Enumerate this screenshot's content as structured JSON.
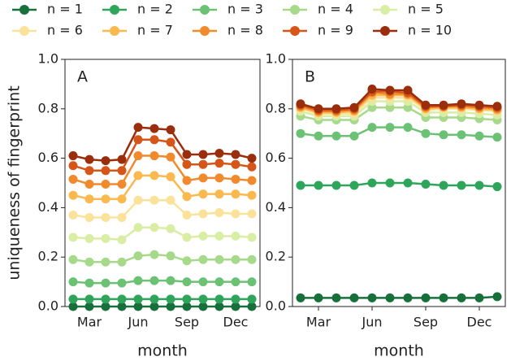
{
  "chart_data": [
    {
      "type": "line",
      "title": "A",
      "y_label": "uniqueness of fingerprint",
      "x_label": "month",
      "categories": [
        null,
        "Mar",
        null,
        null,
        "Jun",
        null,
        null,
        "Sep",
        null,
        null,
        "Dec",
        null
      ],
      "ylim": [
        0,
        1
      ],
      "yticks": [
        {
          "value": 0,
          "label": "0.0"
        },
        0.2,
        0.4,
        0.6,
        0.8,
        {
          "value": 1,
          "label": "1.0"
        }
      ],
      "series": [
        {
          "name": "n = 1",
          "color": "#17703a",
          "values": [
            0,
            0,
            0,
            0,
            0,
            0,
            0,
            0,
            0,
            0,
            0,
            0
          ]
        },
        {
          "name": "n = 2",
          "color": "#2ea55a",
          "values": [
            0.03,
            0.03,
            0.03,
            0.03,
            0.03,
            0.03,
            0.03,
            0.03,
            0.03,
            0.03,
            0.03,
            0.03
          ]
        },
        {
          "name": "n = 3",
          "color": "#6cc274",
          "values": [
            0.1,
            0.095,
            0.095,
            0.095,
            0.105,
            0.105,
            0.105,
            0.1,
            0.1,
            0.1,
            0.1,
            0.1
          ]
        },
        {
          "name": "n = 4",
          "color": "#a6d98a",
          "values": [
            0.19,
            0.18,
            0.18,
            0.18,
            0.205,
            0.21,
            0.205,
            0.185,
            0.19,
            0.19,
            0.19,
            0.19
          ]
        },
        {
          "name": "n = 5",
          "color": "#d9eea4",
          "values": [
            0.28,
            0.275,
            0.275,
            0.27,
            0.32,
            0.32,
            0.315,
            0.28,
            0.285,
            0.285,
            0.285,
            0.28
          ]
        },
        {
          "name": "n = 6",
          "color": "#fbe29a",
          "values": [
            0.37,
            0.36,
            0.36,
            0.36,
            0.43,
            0.43,
            0.43,
            0.37,
            0.375,
            0.38,
            0.375,
            0.375
          ]
        },
        {
          "name": "n = 7",
          "color": "#f9b94f",
          "values": [
            0.45,
            0.435,
            0.435,
            0.435,
            0.53,
            0.53,
            0.525,
            0.445,
            0.455,
            0.455,
            0.455,
            0.45
          ]
        },
        {
          "name": "n = 8",
          "color": "#f08a2c",
          "values": [
            0.515,
            0.495,
            0.495,
            0.495,
            0.61,
            0.61,
            0.605,
            0.51,
            0.52,
            0.52,
            0.515,
            0.51
          ]
        },
        {
          "name": "n = 9",
          "color": "#d6561a",
          "values": [
            0.57,
            0.55,
            0.55,
            0.55,
            0.675,
            0.675,
            0.665,
            0.575,
            0.575,
            0.58,
            0.575,
            0.565
          ]
        },
        {
          "name": "n = 10",
          "color": "#9a2d0c",
          "values": [
            0.61,
            0.595,
            0.59,
            0.595,
            0.725,
            0.72,
            0.715,
            0.615,
            0.615,
            0.62,
            0.615,
            0.6
          ]
        }
      ]
    },
    {
      "type": "line",
      "title": "B",
      "x_label": "month",
      "categories": [
        null,
        "Mar",
        null,
        null,
        "Jun",
        null,
        null,
        "Sep",
        null,
        null,
        "Dec",
        null
      ],
      "ylim": [
        0,
        1
      ],
      "yticks": [
        {
          "value": 0,
          "label": "0.0"
        },
        0.2,
        0.4,
        0.6,
        0.8,
        {
          "value": 1,
          "label": "1.0"
        }
      ],
      "series": [
        {
          "name": "n = 1",
          "color": "#17703a",
          "values": [
            0.035,
            0.035,
            0.035,
            0.035,
            0.035,
            0.035,
            0.035,
            0.035,
            0.035,
            0.035,
            0.035,
            0.04
          ]
        },
        {
          "name": "n = 2",
          "color": "#2ea55a",
          "values": [
            0.49,
            0.49,
            0.49,
            0.49,
            0.5,
            0.5,
            0.5,
            0.495,
            0.49,
            0.49,
            0.49,
            0.485
          ]
        },
        {
          "name": "n = 3",
          "color": "#6cc274",
          "values": [
            0.7,
            0.69,
            0.69,
            0.69,
            0.725,
            0.725,
            0.725,
            0.7,
            0.695,
            0.695,
            0.69,
            0.685
          ]
        },
        {
          "name": "n = 4",
          "color": "#a6d98a",
          "values": [
            0.77,
            0.755,
            0.755,
            0.755,
            0.805,
            0.805,
            0.805,
            0.765,
            0.765,
            0.765,
            0.76,
            0.755
          ]
        },
        {
          "name": "n = 5",
          "color": "#d9eea4",
          "values": [
            0.79,
            0.77,
            0.77,
            0.77,
            0.83,
            0.83,
            0.83,
            0.785,
            0.785,
            0.785,
            0.78,
            0.775
          ]
        },
        {
          "name": "n = 6",
          "color": "#fbe29a",
          "values": [
            0.8,
            0.78,
            0.78,
            0.78,
            0.845,
            0.845,
            0.845,
            0.795,
            0.8,
            0.8,
            0.795,
            0.79
          ]
        },
        {
          "name": "n = 7",
          "color": "#f9b94f",
          "values": [
            0.805,
            0.785,
            0.785,
            0.79,
            0.855,
            0.855,
            0.855,
            0.8,
            0.805,
            0.805,
            0.8,
            0.795
          ]
        },
        {
          "name": "n = 8",
          "color": "#f08a2c",
          "values": [
            0.81,
            0.79,
            0.79,
            0.795,
            0.865,
            0.86,
            0.86,
            0.805,
            0.81,
            0.81,
            0.805,
            0.8
          ]
        },
        {
          "name": "n = 9",
          "color": "#d6561a",
          "values": [
            0.815,
            0.795,
            0.795,
            0.8,
            0.87,
            0.87,
            0.865,
            0.81,
            0.81,
            0.815,
            0.81,
            0.805
          ]
        },
        {
          "name": "n = 10",
          "color": "#9a2d0c",
          "values": [
            0.82,
            0.8,
            0.8,
            0.805,
            0.88,
            0.875,
            0.875,
            0.815,
            0.815,
            0.82,
            0.815,
            0.81
          ]
        }
      ]
    }
  ]
}
